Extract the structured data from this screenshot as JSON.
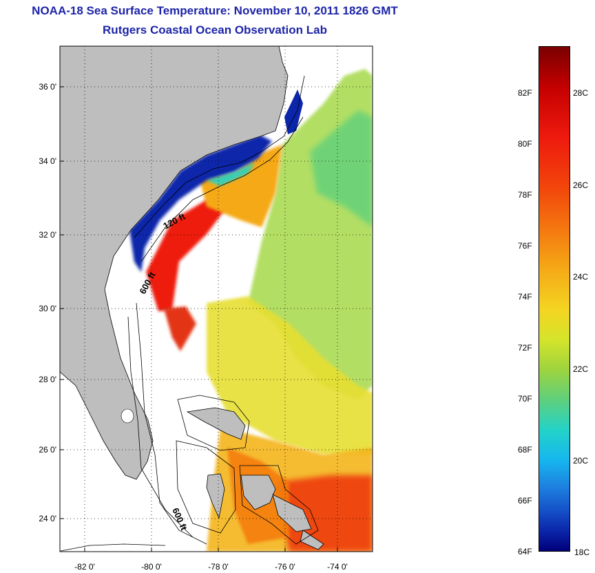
{
  "title": "NOAA-18 Sea Surface Temperature:  November 10, 2011 1826 GMT",
  "subtitle": "Rutgers Coastal Ocean Observation Lab",
  "map": {
    "lat_ticks": [
      "36 0'",
      "34 0'",
      "32 0'",
      "30 0'",
      "28 0'",
      "26 0'",
      "24 0'"
    ],
    "lon_ticks": [
      "-82 0'",
      "-80 0'",
      "-78 0'",
      "-76 0'",
      "-74 0'"
    ],
    "isobath_labels": [
      "120 ft",
      "600 ft",
      "600 ft"
    ],
    "land_color": "#bebebe"
  },
  "colorbar": {
    "fahrenheit": [
      "82F",
      "80F",
      "78F",
      "76F",
      "74F",
      "72F",
      "70F",
      "68F",
      "66F",
      "64F"
    ],
    "celsius": [
      "28C",
      "26C",
      "24C",
      "22C",
      "20C",
      "18C"
    ],
    "max_color": "#7a0000",
    "min_color": "#00007a"
  }
}
